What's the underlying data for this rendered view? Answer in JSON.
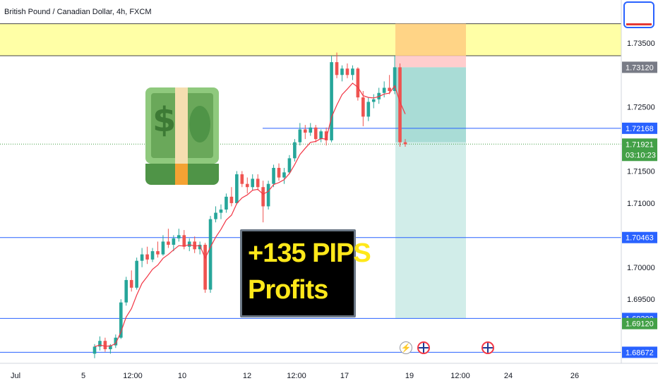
{
  "header": {
    "title": "British Pound / Canadian Dollar, 4h, FXCM"
  },
  "overlay": {
    "line1": "+135 PIPS",
    "line2": "Profits"
  },
  "icons": {
    "money": "money-with-wings-icon",
    "events": [
      "lightning-event-icon",
      "uk-flag-event-icon",
      "uk-flag-event-icon"
    ]
  },
  "colors": {
    "up": "#26a69a",
    "down": "#ef5350",
    "ma": "#f23645",
    "resistance_zone": "#ffff88",
    "target_zone": "#9ad6cf",
    "stop_zone": "#ffc8c8",
    "hline": "#2962ff",
    "current_price": "#43a047"
  },
  "chart_data": {
    "type": "candlestick",
    "symbol": "British Pound / Canadian Dollar",
    "timeframe": "4h",
    "source": "FXCM",
    "x_ticks": [
      "Jul",
      "5",
      "12:00",
      "10",
      "12",
      "12:00",
      "17",
      "19",
      "12:00",
      "24",
      "26"
    ],
    "y_ticks": [
      "1.73500",
      "1.72500",
      "1.71500",
      "1.71000",
      "1.70000",
      "1.69500"
    ],
    "ylim": [
      1.685,
      1.7395
    ],
    "price_labels": [
      {
        "value": "1.73120",
        "style": "gray"
      },
      {
        "value": "1.72168",
        "style": "blue"
      },
      {
        "value": "1.71921",
        "style": "green",
        "countdown": "03:10:23"
      },
      {
        "value": "1.70463",
        "style": "blue"
      },
      {
        "value": "1.69200",
        "style": "blue"
      },
      {
        "value": "1.69120",
        "style": "green"
      },
      {
        "value": "1.68672",
        "style": "blue"
      }
    ],
    "horizontal_lines": [
      1.72168,
      1.70463,
      1.692,
      1.68672
    ],
    "resistance_zone": [
      1.733,
      1.738
    ],
    "position": {
      "type": "short",
      "entry": 1.7312,
      "stop": 1.733,
      "first_target": 1.7195,
      "target": 1.692
    },
    "candles": [
      [
        1.6865,
        1.688,
        1.6858,
        1.6876
      ],
      [
        1.6876,
        1.6892,
        1.687,
        1.6885
      ],
      [
        1.6885,
        1.689,
        1.6868,
        1.6872
      ],
      [
        1.6872,
        1.688,
        1.6865,
        1.6878
      ],
      [
        1.6878,
        1.6895,
        1.6874,
        1.689
      ],
      [
        1.689,
        1.695,
        1.6888,
        1.6945
      ],
      [
        1.6945,
        1.6985,
        1.694,
        1.698
      ],
      [
        1.698,
        1.6995,
        1.6962,
        1.6968
      ],
      [
        1.6968,
        1.7015,
        1.6965,
        1.701
      ],
      [
        1.701,
        1.703,
        1.7,
        1.702
      ],
      [
        1.702,
        1.7032,
        1.7005,
        1.7012
      ],
      [
        1.7012,
        1.703,
        1.7008,
        1.7025
      ],
      [
        1.7025,
        1.704,
        1.7015,
        1.702
      ],
      [
        1.702,
        1.705,
        1.7018,
        1.704
      ],
      [
        1.704,
        1.706,
        1.703,
        1.7035
      ],
      [
        1.7035,
        1.705,
        1.7025,
        1.7045
      ],
      [
        1.7045,
        1.706,
        1.704,
        1.705
      ],
      [
        1.705,
        1.7058,
        1.7028,
        1.7032
      ],
      [
        1.7032,
        1.7045,
        1.7025,
        1.704
      ],
      [
        1.704,
        1.7048,
        1.7022,
        1.7028
      ],
      [
        1.7028,
        1.704,
        1.702,
        1.7035
      ],
      [
        1.7035,
        1.7038,
        1.696,
        1.6965
      ],
      [
        1.6965,
        1.708,
        1.696,
        1.7075
      ],
      [
        1.7075,
        1.7095,
        1.707,
        1.7085
      ],
      [
        1.7085,
        1.7098,
        1.7075,
        1.709
      ],
      [
        1.709,
        1.7115,
        1.7085,
        1.711
      ],
      [
        1.711,
        1.7125,
        1.7095,
        1.71
      ],
      [
        1.71,
        1.715,
        1.7098,
        1.7145
      ],
      [
        1.7145,
        1.715,
        1.7125,
        1.713
      ],
      [
        1.713,
        1.714,
        1.7115,
        1.7125
      ],
      [
        1.7125,
        1.7145,
        1.712,
        1.7138
      ],
      [
        1.7138,
        1.7145,
        1.712,
        1.7125
      ],
      [
        1.7125,
        1.7135,
        1.707,
        1.7095
      ],
      [
        1.7095,
        1.7135,
        1.709,
        1.713
      ],
      [
        1.713,
        1.716,
        1.7125,
        1.7155
      ],
      [
        1.7155,
        1.7162,
        1.7135,
        1.714
      ],
      [
        1.714,
        1.7155,
        1.713,
        1.7148
      ],
      [
        1.7148,
        1.7175,
        1.7145,
        1.717
      ],
      [
        1.717,
        1.72,
        1.7165,
        1.7195
      ],
      [
        1.7195,
        1.7225,
        1.719,
        1.7215
      ],
      [
        1.7215,
        1.7222,
        1.72,
        1.721
      ],
      [
        1.721,
        1.7225,
        1.7205,
        1.7218
      ],
      [
        1.7218,
        1.7222,
        1.7195,
        1.72
      ],
      [
        1.72,
        1.7215,
        1.7195,
        1.7212
      ],
      [
        1.7212,
        1.7218,
        1.719,
        1.7198
      ],
      [
        1.7198,
        1.733,
        1.7195,
        1.732
      ],
      [
        1.732,
        1.7335,
        1.7295,
        1.73
      ],
      [
        1.73,
        1.7315,
        1.729,
        1.731
      ],
      [
        1.731,
        1.7318,
        1.7295,
        1.73
      ],
      [
        1.73,
        1.7315,
        1.7292,
        1.731
      ],
      [
        1.731,
        1.7312,
        1.726,
        1.7265
      ],
      [
        1.7265,
        1.7275,
        1.722,
        1.7235
      ],
      [
        1.7235,
        1.7265,
        1.7228,
        1.7258
      ],
      [
        1.7258,
        1.727,
        1.7248,
        1.7262
      ],
      [
        1.7262,
        1.728,
        1.7255,
        1.7272
      ],
      [
        1.7272,
        1.729,
        1.7265,
        1.728
      ],
      [
        1.728,
        1.73,
        1.727,
        1.7275
      ],
      [
        1.7275,
        1.733,
        1.727,
        1.7312
      ],
      [
        1.7312,
        1.7318,
        1.7188,
        1.7195
      ],
      [
        1.7195,
        1.72,
        1.7188,
        1.7192
      ]
    ]
  }
}
